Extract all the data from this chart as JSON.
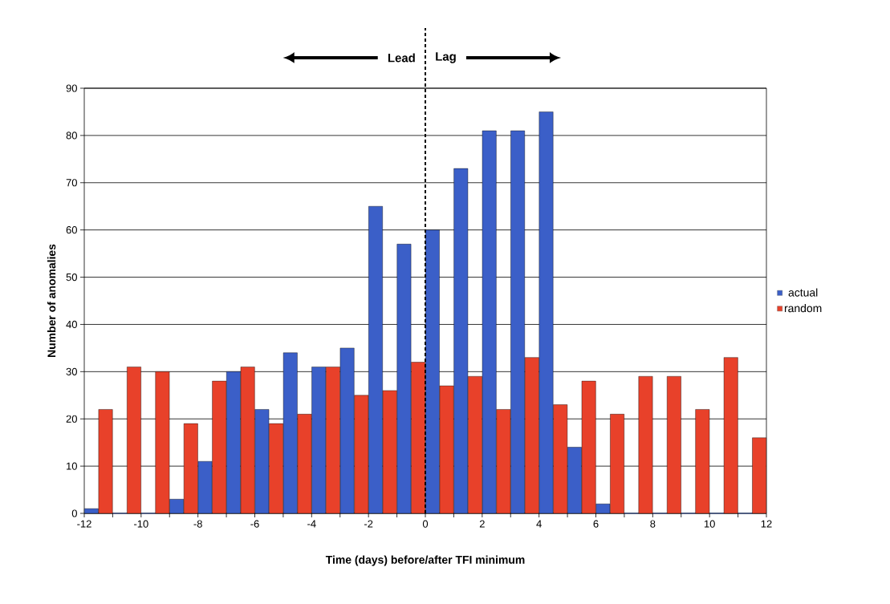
{
  "chart_data": {
    "type": "bar",
    "xlabel": "Time (days) before/after TFI minimum",
    "ylabel": "Number of anomalies",
    "annotations": [
      "Lead",
      "Lag"
    ],
    "x": [
      -11.5,
      -10.5,
      -9.5,
      -8.5,
      -7.5,
      -6.5,
      -5.5,
      -4.5,
      -3.5,
      -2.5,
      -1.5,
      -0.5,
      0.5,
      1.5,
      2.5,
      3.5,
      4.5,
      5.5,
      6.5,
      7.5,
      8.5,
      9.5,
      10.5,
      11.5
    ],
    "series": [
      {
        "name": "actual",
        "color": "#3b5fc8",
        "values": [
          1,
          0,
          0,
          3,
          11,
          30,
          22,
          34,
          31,
          35,
          65,
          57,
          60,
          73,
          81,
          81,
          85,
          14,
          2,
          0,
          0,
          0,
          0,
          0
        ]
      },
      {
        "name": "random",
        "color": "#e8412a",
        "values": [
          22,
          31,
          30,
          19,
          28,
          31,
          19,
          21,
          31,
          25,
          26,
          32,
          27,
          29,
          22,
          33,
          23,
          28,
          21,
          29,
          29,
          22,
          33,
          16
        ]
      }
    ],
    "xlim": [
      -12,
      12
    ],
    "xticks": [
      -12,
      {
        "value": -11,
        "label": null
      },
      -10,
      {
        "value": -9,
        "label": null
      },
      -8,
      {
        "value": -7,
        "label": null
      },
      -6,
      {
        "value": -5,
        "label": null
      },
      -4,
      {
        "value": -3,
        "label": null
      },
      -2,
      {
        "value": -1,
        "label": null
      },
      0,
      {
        "value": 1,
        "label": null
      },
      2,
      {
        "value": 3,
        "label": null
      },
      4,
      {
        "value": 5,
        "label": null
      },
      6,
      {
        "value": 7,
        "label": null
      },
      8,
      {
        "value": 9,
        "label": null
      },
      10,
      {
        "value": 11,
        "label": null
      },
      12
    ],
    "ylim": [
      0,
      90
    ],
    "yticks": [
      0,
      10,
      20,
      30,
      40,
      50,
      60,
      70,
      80,
      90
    ],
    "ref_lines": [
      {
        "axis": "x",
        "value": 0,
        "line_style": "dashed"
      }
    ],
    "grid": "y",
    "legend": "right"
  }
}
